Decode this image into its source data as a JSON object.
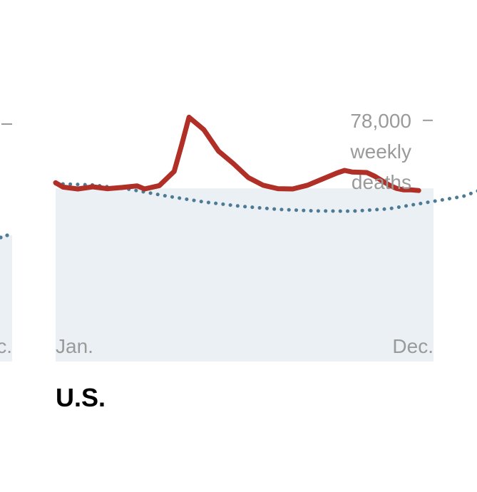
{
  "chart_data": {
    "type": "line",
    "region": "U.S.",
    "xlabel": "",
    "ylabel": "weekly deaths",
    "x_axis": {
      "start_label": "Jan.",
      "end_label": "Dec.",
      "range_weeks": [
        1,
        52
      ]
    },
    "y_axis": {
      "ticks": [
        {
          "value": 78000,
          "label": "78,000",
          "sublabel_1": "weekly",
          "sublabel_2": "deaths"
        }
      ],
      "ylim": [
        0,
        104000
      ]
    },
    "series": [
      {
        "style": "solid",
        "color": "#b03028",
        "points": [
          [
            1,
            57800
          ],
          [
            2,
            56400
          ],
          [
            4,
            55800
          ],
          [
            6,
            56500
          ],
          [
            8,
            55900
          ],
          [
            10,
            56300
          ],
          [
            12,
            56800
          ],
          [
            13,
            55800
          ],
          [
            15,
            56900
          ],
          [
            17,
            61500
          ],
          [
            18,
            70000
          ],
          [
            19,
            79000
          ],
          [
            21,
            75000
          ],
          [
            23,
            68000
          ],
          [
            25,
            64000
          ],
          [
            27,
            59500
          ],
          [
            29,
            57000
          ],
          [
            31,
            55900
          ],
          [
            33,
            55800
          ],
          [
            35,
            57000
          ],
          [
            37,
            59000
          ],
          [
            39,
            61000
          ],
          [
            40,
            61800
          ],
          [
            41,
            61300
          ],
          [
            43,
            61100
          ],
          [
            44,
            60000
          ],
          [
            46,
            57100
          ],
          [
            47,
            56000
          ],
          [
            48,
            55500
          ],
          [
            49,
            55500
          ],
          [
            50,
            55300
          ]
        ]
      },
      {
        "style": "dotted",
        "color": "#4d7a94",
        "points": [
          [
            1,
            57500
          ],
          [
            6,
            57100
          ],
          [
            11,
            55700
          ],
          [
            16,
            53500
          ],
          [
            21,
            51600
          ],
          [
            26,
            50200
          ],
          [
            31,
            49200
          ],
          [
            36,
            48700
          ],
          [
            41,
            48600
          ],
          [
            46,
            49400
          ],
          [
            51,
            51400
          ],
          [
            56,
            53400
          ],
          [
            59,
            56100
          ]
        ]
      }
    ],
    "background_region_upper": 56000,
    "left_panel_clipped": {
      "end_label": "Dec."
    }
  }
}
